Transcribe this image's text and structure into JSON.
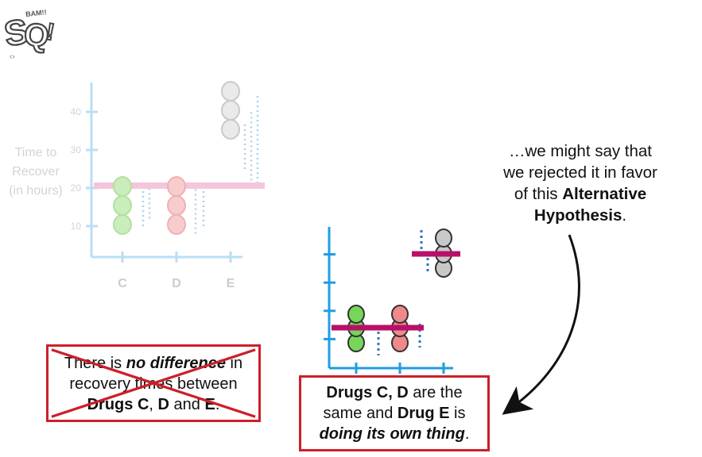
{
  "logo": {
    "text": "StatQuest",
    "icon": "statquest-logo"
  },
  "left_chart": {
    "y_axis_label": [
      "Time to",
      "Recover",
      "(in hours)"
    ],
    "y_ticks": [
      10,
      20,
      30,
      40
    ],
    "categories": [
      "C",
      "D",
      "E"
    ]
  },
  "note": {
    "line1": "…we might say that",
    "line2": "we rejected it in favor",
    "line3_pre": "of this ",
    "line3_bold": "Alternative",
    "line4_bold": "Hypothesis",
    "line4_post": "."
  },
  "null_box": {
    "l1_pre": "There is ",
    "l1_emph": "no difference",
    "l1_post": " in",
    "l2": "recovery times between",
    "l3_b1": "Drugs C",
    "l3_m": ", ",
    "l3_b2": "D",
    "l3_and": " and ",
    "l3_b3": "E",
    "l3_end": "."
  },
  "alt_box": {
    "l1_bold": "Drugs C, D",
    "l1_post": " are the",
    "l2_pre": "same and ",
    "l2_bold": "Drug E",
    "l2_post": " is",
    "l3_emph": "doing its own thing",
    "l3_end": "."
  },
  "chart_data": {
    "type": "scatter",
    "categories": [
      "C",
      "D",
      "E"
    ],
    "values": {
      "C": [
        10,
        15,
        20
      ],
      "D": [
        10,
        15,
        20
      ],
      "E": [
        35,
        40,
        45
      ]
    },
    "ylabel": "Time to Recover (in hours)",
    "ylim": [
      5,
      45
    ],
    "null_mean": 20,
    "alt_means": {
      "CD": 15,
      "E": 40
    },
    "colors": {
      "C": "#76d658",
      "D": "#f0898a",
      "E": "#c8c8c8",
      "null_line": "#f0a8c8",
      "alt_line": "#b8106a",
      "axis": "#1f9de0"
    }
  }
}
